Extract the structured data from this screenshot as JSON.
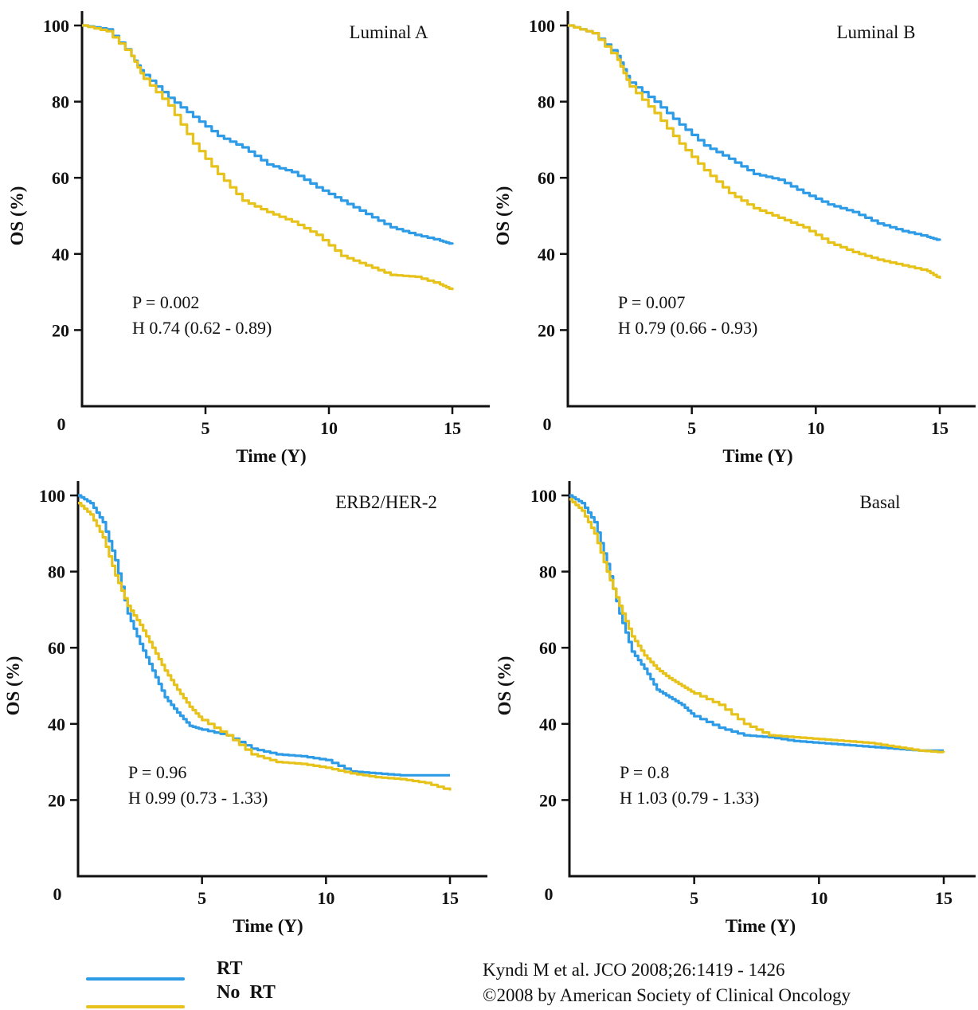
{
  "colors": {
    "rt": "#2e9be6",
    "no_rt": "#e6c21a",
    "axis": "#111111"
  },
  "legend": [
    {
      "label": "RT",
      "color": "#2e9be6"
    },
    {
      "label": "No  RT",
      "color": "#e6c21a"
    }
  ],
  "citation": {
    "line1": "Kyndi M et al. JCO 2008;26:1419 - 1426",
    "line2": "©2008 by American Society of Clinical Oncology"
  },
  "chart_data": [
    {
      "type": "line",
      "title": "Luminal A",
      "xlabel": "Time (Y)",
      "ylabel": "OS (%)",
      "xticks": [
        "5",
        "10",
        "15"
      ],
      "yticks": [
        "100",
        "80",
        "60",
        "40",
        "20"
      ],
      "origin_label": "0",
      "xlim": [
        0,
        15.5
      ],
      "ylim": [
        0,
        100
      ],
      "p_text": "P = 0.002",
      "hr_text": "H 0.74 (0.62 - 0.89)",
      "series": [
        {
          "name": "RT",
          "color": "#2e9be6",
          "x": [
            0,
            1,
            2,
            2.5,
            3.5,
            4.5,
            5.5,
            6.5,
            7.5,
            8.5,
            9.5,
            10.5,
            11.5,
            12.5,
            13.5,
            14.5,
            15
          ],
          "y": [
            100,
            99,
            92,
            87,
            81,
            76,
            71,
            68,
            63.5,
            61.5,
            57.5,
            54,
            50.5,
            47,
            45,
            43.5,
            42.5
          ]
        },
        {
          "name": "No RT",
          "color": "#e6c21a",
          "x": [
            0,
            1,
            2,
            2.5,
            3.5,
            4.5,
            5.5,
            6.5,
            7.5,
            8.5,
            9.5,
            10.5,
            11.5,
            12.5,
            13.5,
            14.5,
            15
          ],
          "y": [
            100,
            98.5,
            92,
            86,
            79,
            69,
            61,
            54,
            51,
            48.5,
            45,
            39.5,
            37,
            34.5,
            34,
            32,
            30.5
          ]
        }
      ]
    },
    {
      "type": "line",
      "title": "Luminal B",
      "xlabel": "Time (Y)",
      "ylabel": "OS (%)",
      "xticks": [
        "5",
        "10",
        "15"
      ],
      "yticks": [
        "100",
        "80",
        "60",
        "40",
        "20"
      ],
      "origin_label": "0",
      "xlim": [
        0,
        15.5
      ],
      "ylim": [
        0,
        100
      ],
      "p_text": "P = 0.007",
      "hr_text": "H 0.79 (0.66 - 0.93)",
      "series": [
        {
          "name": "RT",
          "color": "#2e9be6",
          "x": [
            0,
            1,
            2,
            2.5,
            3.5,
            4.5,
            5.5,
            6.5,
            7.5,
            8.5,
            9.5,
            10.5,
            11.5,
            12.5,
            13.5,
            14.5,
            15
          ],
          "y": [
            100,
            98,
            92,
            85,
            80,
            74,
            68.5,
            65,
            61,
            59.5,
            56,
            53,
            51,
            48,
            46,
            44.5,
            43.5
          ]
        },
        {
          "name": "No RT",
          "color": "#e6c21a",
          "x": [
            0,
            1,
            2,
            2.5,
            3.5,
            4.5,
            5.5,
            6.5,
            7.5,
            8.5,
            9.5,
            10.5,
            11.5,
            12.5,
            13.5,
            14.5,
            15
          ],
          "y": [
            100,
            98,
            91,
            84,
            77,
            69,
            62,
            56,
            52,
            49.5,
            47,
            43,
            40.5,
            38.5,
            37,
            35.5,
            33.5
          ]
        }
      ]
    },
    {
      "type": "line",
      "title": "ERB2/HER-2",
      "xlabel": "Time (Y)",
      "ylabel": "OS (%)",
      "xticks": [
        "5",
        "10",
        "15"
      ],
      "yticks": [
        "100",
        "80",
        "60",
        "40",
        "20"
      ],
      "origin_label": "0",
      "xlim": [
        0,
        15.5
      ],
      "ylim": [
        0,
        100
      ],
      "p_text": "P = 0.96",
      "hr_text": "H 0.99 (0.73 - 1.33)",
      "series": [
        {
          "name": "RT",
          "color": "#2e9be6",
          "x": [
            0,
            0.5,
            1,
            1.5,
            2,
            2.5,
            3,
            3.5,
            4,
            4.5,
            5,
            6,
            7,
            8,
            9,
            10,
            11,
            12,
            13,
            14,
            15
          ],
          "y": [
            100,
            98,
            93,
            83,
            69,
            61,
            54,
            47,
            43,
            39.5,
            38.5,
            37,
            33.5,
            32,
            31.5,
            30.5,
            27.5,
            27,
            26.5,
            26.5,
            26.5
          ]
        },
        {
          "name": "No RT",
          "color": "#e6c21a",
          "x": [
            0,
            0.5,
            1,
            1.5,
            2,
            2.5,
            3,
            3.5,
            4,
            4.5,
            5,
            6,
            7,
            8,
            9,
            10,
            11,
            12,
            13,
            14,
            15
          ],
          "y": [
            98,
            95,
            89,
            79,
            71,
            66,
            60,
            54,
            49,
            44.5,
            41,
            37,
            32,
            30,
            29.5,
            28.5,
            27,
            26,
            25.5,
            24.5,
            22.5
          ]
        }
      ]
    },
    {
      "type": "line",
      "title": "Basal",
      "xlabel": "Time (Y)",
      "ylabel": "OS (%)",
      "xticks": [
        "5",
        "10",
        "15"
      ],
      "yticks": [
        "100",
        "80",
        "60",
        "40",
        "20"
      ],
      "origin_label": "0",
      "xlim": [
        0,
        15.5
      ],
      "ylim": [
        0,
        100
      ],
      "p_text": "P = 0.8",
      "hr_text": "H 1.03 (0.79 - 1.33)",
      "series": [
        {
          "name": "RT",
          "color": "#2e9be6",
          "x": [
            0,
            0.5,
            1,
            1.5,
            2,
            2.5,
            3,
            3.5,
            4,
            4.5,
            5,
            6,
            7,
            8,
            9,
            10,
            11,
            12,
            13,
            14,
            15
          ],
          "y": [
            100,
            98,
            93,
            82,
            69,
            59,
            54.5,
            49,
            47,
            45,
            42,
            39,
            37,
            36.5,
            35.5,
            35,
            34.5,
            34,
            33.5,
            33,
            33
          ]
        },
        {
          "name": "No RT",
          "color": "#e6c21a",
          "x": [
            0,
            0.5,
            1,
            1.5,
            2,
            2.5,
            3,
            3.5,
            4,
            4.5,
            5,
            6,
            7,
            8,
            9,
            10,
            11,
            12,
            13,
            14,
            15
          ],
          "y": [
            99,
            96,
            90,
            80,
            71,
            63,
            58,
            54.5,
            52,
            50,
            48,
            45,
            40,
            37,
            36.5,
            36,
            35.5,
            35,
            34,
            33,
            32.5
          ]
        }
      ]
    }
  ]
}
